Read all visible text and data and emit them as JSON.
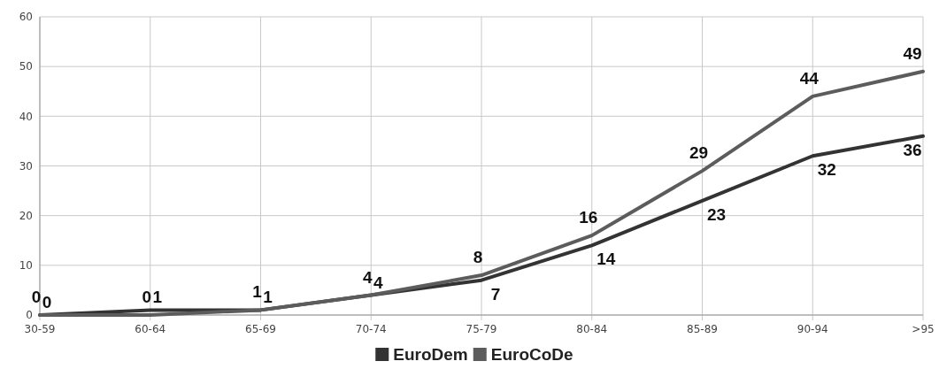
{
  "chart_data": {
    "type": "line",
    "categories": [
      "30-59",
      "60-64",
      "65-69",
      "70-74",
      "75-79",
      "80-84",
      "85-89",
      "90-94",
      ">95"
    ],
    "series": [
      {
        "name": "EuroDem",
        "color": "#333333",
        "values": [
          0,
          1,
          1,
          4,
          7,
          14,
          23,
          32,
          36
        ]
      },
      {
        "name": "EuroCoDe",
        "color": "#5c5c5c",
        "values": [
          0,
          0,
          1,
          4,
          8,
          16,
          29,
          44,
          49
        ]
      }
    ],
    "ylim": [
      0,
      60
    ],
    "yticks": [
      0,
      10,
      20,
      30,
      40,
      50,
      60
    ],
    "grid": true,
    "legend": "bottom",
    "data_labels": true,
    "marker": "none",
    "line_style": "solid"
  }
}
